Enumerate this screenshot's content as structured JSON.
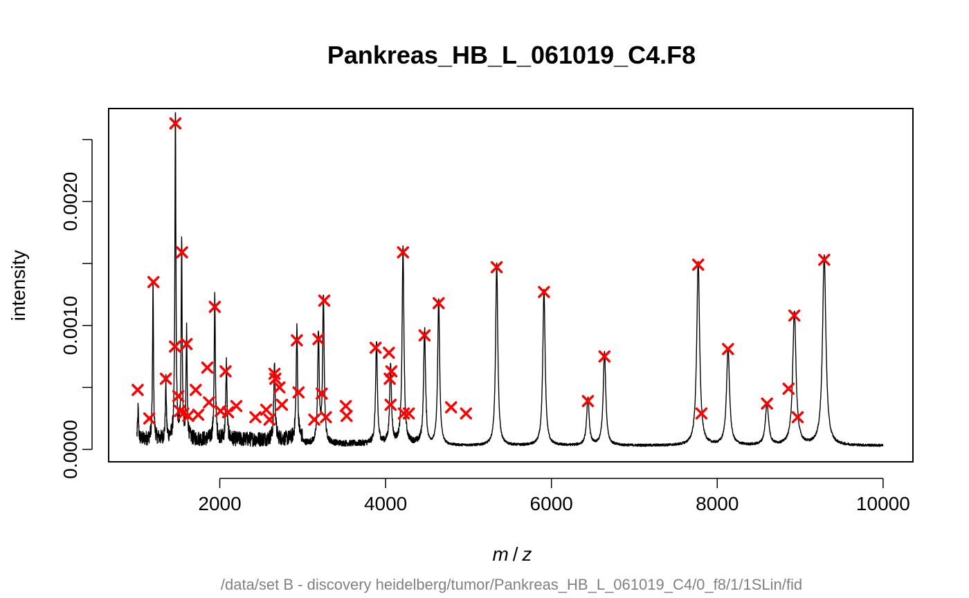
{
  "chart_data": {
    "type": "line",
    "title": "Pankreas_HB_L_061019_C4.F8",
    "xlabel_parts": [
      "m",
      "/",
      "z"
    ],
    "ylabel": "intensity",
    "subtitle": "/data/set B - discovery heidelberg/tumor/Pankreas_HB_L_061019_C4/0_f8/1/1SLin/fid",
    "xlim": [
      660,
      10360
    ],
    "ylim": [
      -0.0001,
      0.00275
    ],
    "x_ticks": [
      2000,
      4000,
      6000,
      8000,
      10000
    ],
    "x_tick_labels": [
      "2000",
      "4000",
      "6000",
      "8000",
      "10000"
    ],
    "y_ticks": [
      0.0,
      0.0005,
      0.001,
      0.0015,
      0.002,
      0.0025
    ],
    "y_tick_labels": [
      "0.0000",
      "",
      "0.0010",
      "",
      "0.0020",
      ""
    ],
    "spectrum": {
      "name": "",
      "color": "#000000",
      "x_range": [
        1000,
        10000
      ],
      "baseline": 2e-05,
      "peaks": [
        {
          "mz": 1015,
          "height": 0.00025
        },
        {
          "mz": 1195,
          "height": 0.00127
        },
        {
          "mz": 1350,
          "height": 0.00045
        },
        {
          "mz": 1465,
          "height": 0.00265
        },
        {
          "mz": 1540,
          "height": 0.00158
        },
        {
          "mz": 1600,
          "height": 0.00085
        },
        {
          "mz": 1940,
          "height": 0.00115
        },
        {
          "mz": 2080,
          "height": 0.00062
        },
        {
          "mz": 2660,
          "height": 0.00062
        },
        {
          "mz": 2930,
          "height": 0.00088
        },
        {
          "mz": 3190,
          "height": 0.00088
        },
        {
          "mz": 3250,
          "height": 0.00118
        },
        {
          "mz": 3890,
          "height": 0.00082
        },
        {
          "mz": 4060,
          "height": 0.00063
        },
        {
          "mz": 4210,
          "height": 0.00158
        },
        {
          "mz": 4470,
          "height": 0.00092
        },
        {
          "mz": 4640,
          "height": 0.00118
        },
        {
          "mz": 5340,
          "height": 0.00147
        },
        {
          "mz": 5910,
          "height": 0.00126
        },
        {
          "mz": 6440,
          "height": 0.00038
        },
        {
          "mz": 6640,
          "height": 0.00075
        },
        {
          "mz": 7770,
          "height": 0.00148
        },
        {
          "mz": 8130,
          "height": 0.00078
        },
        {
          "mz": 8600,
          "height": 0.00034
        },
        {
          "mz": 8930,
          "height": 0.00108
        },
        {
          "mz": 9290,
          "height": 0.00153
        }
      ]
    },
    "detected_peaks": {
      "name": "",
      "marker": "x",
      "color": "#ff0000",
      "points": [
        [
          1010,
          0.00048
        ],
        [
          1150,
          0.00025
        ],
        [
          1200,
          0.00135
        ],
        [
          1350,
          0.00057
        ],
        [
          1460,
          0.00083
        ],
        [
          1465,
          0.00263
        ],
        [
          1500,
          0.00043
        ],
        [
          1520,
          0.00031
        ],
        [
          1545,
          0.00159
        ],
        [
          1560,
          0.00029
        ],
        [
          1600,
          0.00085
        ],
        [
          1620,
          0.00027
        ],
        [
          1710,
          0.00048
        ],
        [
          1740,
          0.00028
        ],
        [
          1850,
          0.00066
        ],
        [
          1870,
          0.00038
        ],
        [
          1940,
          0.00115
        ],
        [
          2010,
          0.00031
        ],
        [
          2070,
          0.00063
        ],
        [
          2100,
          0.0003
        ],
        [
          2200,
          0.00035
        ],
        [
          2430,
          0.00026
        ],
        [
          2560,
          0.00032
        ],
        [
          2600,
          0.00024
        ],
        [
          2660,
          0.00061
        ],
        [
          2670,
          0.00057
        ],
        [
          2720,
          0.0005
        ],
        [
          2750,
          0.00036
        ],
        [
          2930,
          0.00088
        ],
        [
          2950,
          0.00046
        ],
        [
          3140,
          0.00024
        ],
        [
          3190,
          0.00089
        ],
        [
          3230,
          0.00045
        ],
        [
          3260,
          0.0012
        ],
        [
          3280,
          0.00026
        ],
        [
          3520,
          0.00035
        ],
        [
          3530,
          0.00027
        ],
        [
          3880,
          0.00082
        ],
        [
          4040,
          0.00078
        ],
        [
          4050,
          0.00057
        ],
        [
          4060,
          0.00036
        ],
        [
          4070,
          0.00063
        ],
        [
          4210,
          0.00159
        ],
        [
          4220,
          0.00029
        ],
        [
          4280,
          0.00029
        ],
        [
          4470,
          0.00092
        ],
        [
          4640,
          0.00118
        ],
        [
          4790,
          0.00034
        ],
        [
          4970,
          0.00029
        ],
        [
          5340,
          0.00147
        ],
        [
          5910,
          0.00127
        ],
        [
          6440,
          0.00039
        ],
        [
          6640,
          0.00075
        ],
        [
          7770,
          0.00149
        ],
        [
          7810,
          0.00029
        ],
        [
          8130,
          0.00081
        ],
        [
          8600,
          0.00037
        ],
        [
          8860,
          0.00049
        ],
        [
          8930,
          0.00108
        ],
        [
          8970,
          0.00026
        ],
        [
          9290,
          0.00153
        ]
      ]
    },
    "grid": false,
    "legend": "none"
  }
}
